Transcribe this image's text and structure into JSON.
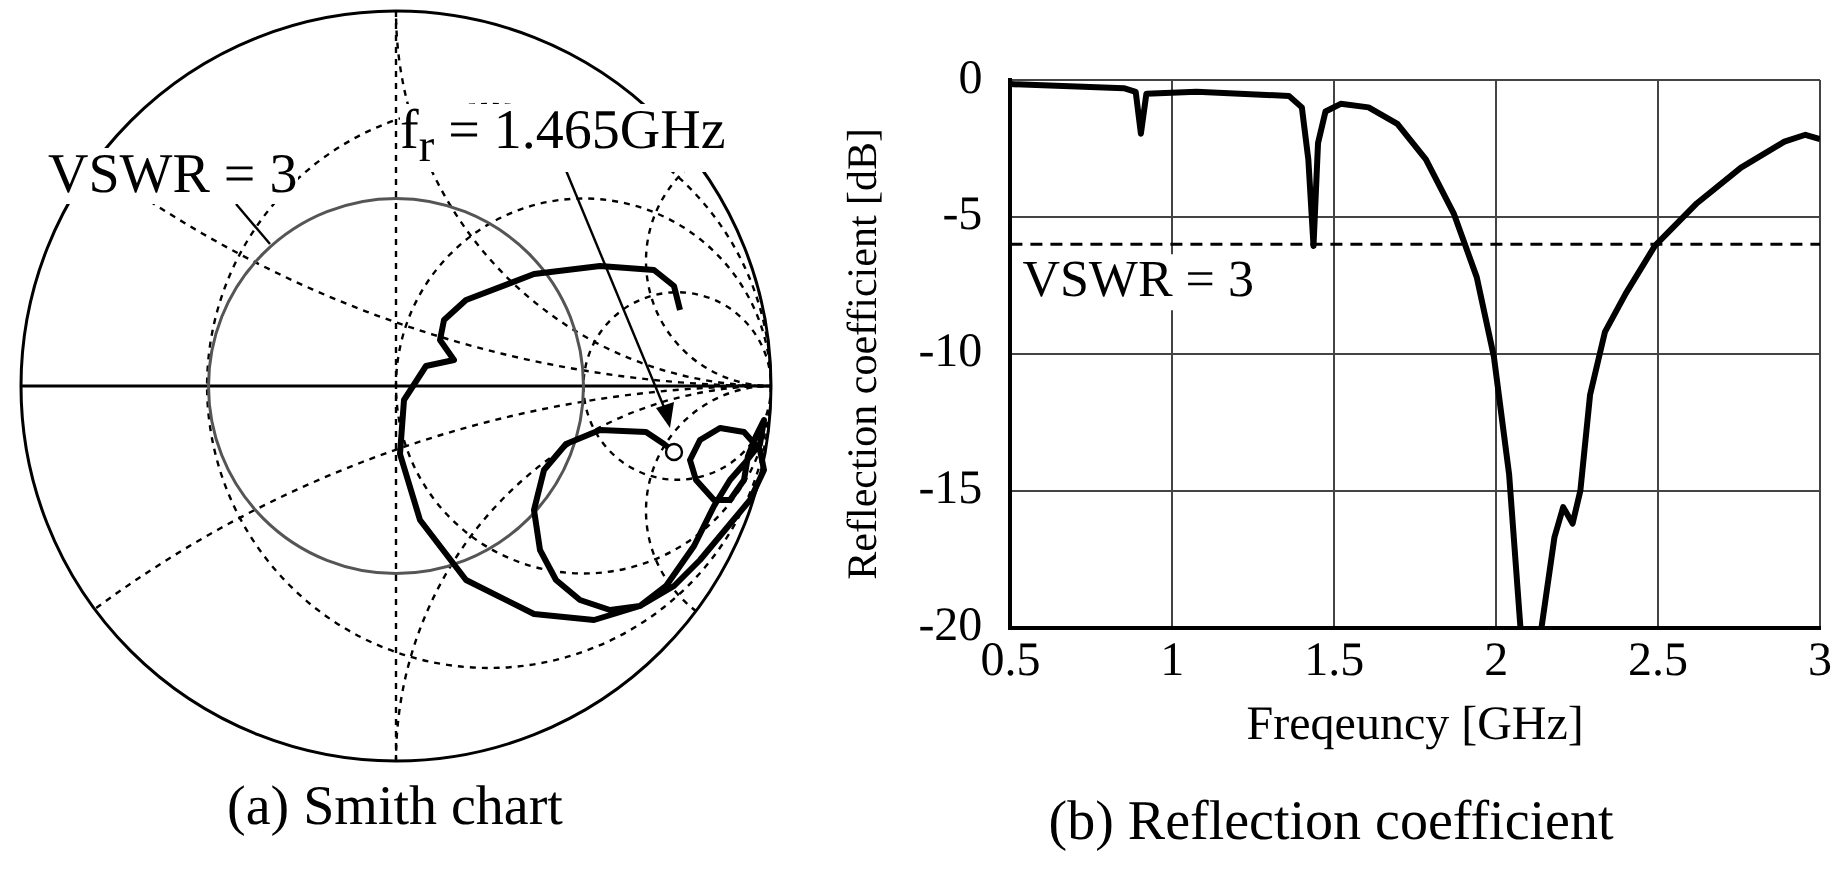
{
  "chart_data": [
    {
      "type": "other",
      "title": "(a) Smith chart",
      "annotations": [
        "VSWR = 3",
        "f$_{r}$ = 1.465GHz"
      ]
    },
    {
      "type": "line",
      "title": "(b) Reflection coefficient",
      "xlabel": "Freqeuncy [GHz]",
      "ylabel": "Reflection coefficient [dB]",
      "xlim": [
        0.5,
        3
      ],
      "xticks": [
        0.5,
        1,
        1.5,
        2,
        2.5,
        3
      ],
      "ylim": [
        -20,
        0
      ],
      "yticks": [
        -20,
        -15,
        -10,
        -5,
        0
      ],
      "grid": true,
      "marker": "none",
      "line_style": "solid",
      "ref_lines": [
        {
          "axis": "y",
          "value": -6,
          "line_style": "dashed",
          "color": "#000000"
        }
      ],
      "annotations": [
        "VSWR = 3"
      ],
      "series": [
        {
          "color": "#000000",
          "x": [
            0.5,
            0.85,
            0.887,
            0.903,
            0.92,
            1.075,
            1.36,
            1.4,
            1.42,
            1.436,
            1.45,
            1.473,
            1.52,
            1.606,
            1.695,
            1.783,
            1.87,
            1.94,
            1.993,
            2.04,
            2.075,
            2.105,
            2.14,
            2.18,
            2.207,
            2.236,
            2.26,
            2.29,
            2.336,
            2.4,
            2.49,
            2.62,
            2.756,
            2.89,
            2.955,
            3.0
          ],
          "values": [
            -0.15,
            -0.3,
            -0.43,
            -1.96,
            -0.5,
            -0.43,
            -0.58,
            -1.0,
            -2.9,
            -6.06,
            -2.3,
            -1.15,
            -0.87,
            -1.0,
            -1.6,
            -2.9,
            -4.9,
            -7.2,
            -10.1,
            -14.4,
            -20,
            null,
            -20,
            -16.7,
            -15.6,
            -16.2,
            -15.0,
            -11.5,
            -9.2,
            -7.8,
            -6.06,
            -4.5,
            -3.2,
            -2.25,
            -2.0,
            -2.16
          ]
        }
      ]
    }
  ]
}
